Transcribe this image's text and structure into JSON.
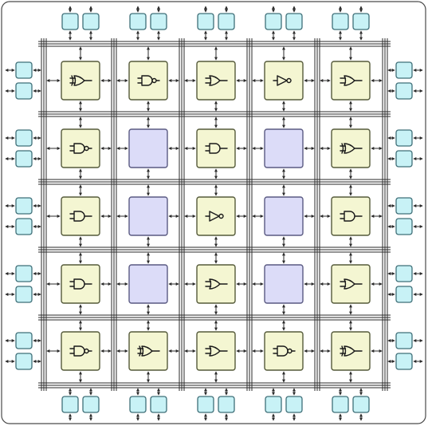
{
  "diagram": {
    "grid_rows": 5,
    "grid_cols": 5,
    "io_pads_per_side_slot": 2,
    "colors": {
      "io_pad": "#c8f2f6",
      "logic_block": "#f4f6d2",
      "memory_block": "#dcdcf8",
      "routing": "#2a2a2a",
      "frame": "#4a4a4a"
    },
    "blocks": [
      [
        "xor",
        "nand",
        "or",
        "not",
        "or"
      ],
      [
        "nand",
        "memory",
        "and",
        "memory",
        "xor"
      ],
      [
        "and",
        "memory",
        "not",
        "memory",
        "and"
      ],
      [
        "and",
        "memory",
        "or",
        "memory",
        "or"
      ],
      [
        "nand",
        "xor",
        "or",
        "nand",
        "xor"
      ]
    ]
  }
}
